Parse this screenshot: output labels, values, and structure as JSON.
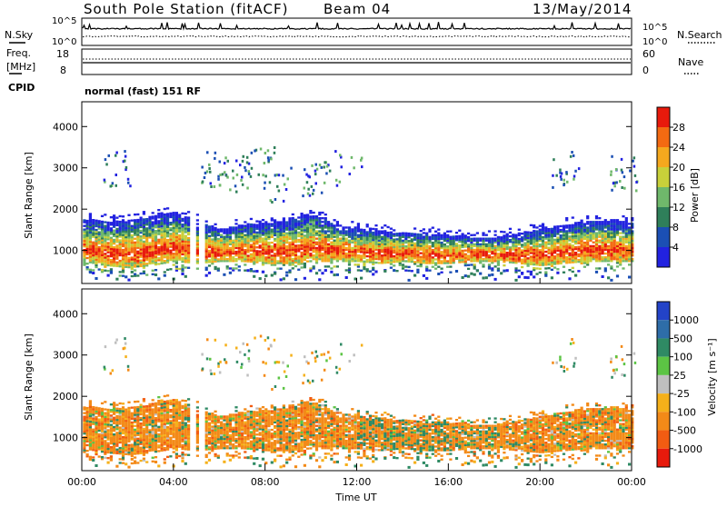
{
  "header": {
    "station": "South Pole Station (fitACF)",
    "beam": "Beam 04",
    "date": "13/May/2014"
  },
  "noise_panel": {
    "left_label": "N.Sky",
    "right_label": "N.Search",
    "left_ticks": [
      "10^5",
      "10^0"
    ],
    "right_ticks": [
      "10^5",
      "10^0"
    ]
  },
  "freq_panel": {
    "left_label_1": "Freq.",
    "left_label_2": "[MHz]",
    "left_ticks": [
      "18",
      "8"
    ],
    "right_label": "Nave",
    "right_ticks": [
      "60",
      "0"
    ]
  },
  "cpid": {
    "label": "CPID",
    "mode": "normal (fast) 151 RF"
  },
  "chart_data": [
    {
      "type": "heatmap",
      "title": "",
      "xlabel": "",
      "ylabel": "Slant Range [km]",
      "yticks": [
        1000,
        2000,
        3000,
        4000
      ],
      "ylim": [
        200,
        4600
      ],
      "xlim": [
        0,
        24
      ],
      "colorbar": {
        "label": "Power [dB]",
        "ticks": [
          "4",
          "8",
          "12",
          "16",
          "20",
          "24",
          "28"
        ],
        "colors": [
          "#2222e0",
          "#1b4fb4",
          "#2f7f5a",
          "#6fb86b",
          "#c8d03a",
          "#f5a81e",
          "#f36a12",
          "#e81a0c"
        ]
      },
      "echo_band": {
        "lower_km": [
          700,
          600,
          550,
          600,
          700,
          650,
          700,
          700,
          650,
          650,
          700,
          700,
          700,
          650,
          700,
          650,
          650,
          700,
          700,
          650,
          600,
          650,
          700,
          700,
          700
        ],
        "upper_km": [
          1750,
          1700,
          1700,
          1800,
          1900,
          1700,
          1500,
          1600,
          1650,
          1700,
          1900,
          1600,
          1500,
          1450,
          1400,
          1400,
          1350,
          1300,
          1300,
          1400,
          1500,
          1600,
          1700,
          1700,
          1650
        ]
      }
    },
    {
      "type": "heatmap",
      "title": "",
      "xlabel": "Time UT",
      "ylabel": "Slant Range [km]",
      "yticks": [
        1000,
        2000,
        3000,
        4000
      ],
      "ylim": [
        200,
        4600
      ],
      "xlim": [
        0,
        24
      ],
      "xticks": [
        "00:00",
        "04:00",
        "08:00",
        "12:00",
        "16:00",
        "20:00",
        "00:00"
      ],
      "colorbar": {
        "label": "Velocity [m s⁻¹]",
        "ticks": [
          "1000",
          "500",
          "100",
          "25",
          "-25",
          "-100",
          "-500",
          "-1000"
        ],
        "colors": [
          "#2343c8",
          "#2e6da8",
          "#2f8a64",
          "#5cc444",
          "#bfbfbf",
          "#f5b01a",
          "#f38a18",
          "#f25c12",
          "#e81a0c"
        ]
      }
    }
  ]
}
